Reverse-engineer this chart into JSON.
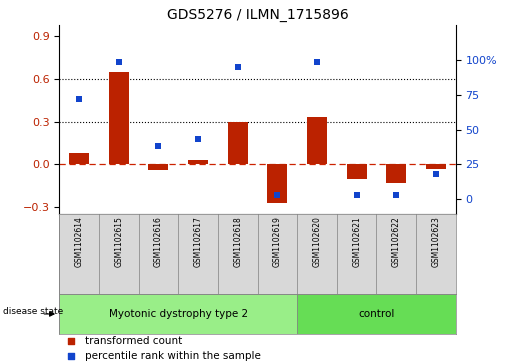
{
  "title": "GDS5276 / ILMN_1715896",
  "samples": [
    "GSM1102614",
    "GSM1102615",
    "GSM1102616",
    "GSM1102617",
    "GSM1102618",
    "GSM1102619",
    "GSM1102620",
    "GSM1102621",
    "GSM1102622",
    "GSM1102623"
  ],
  "bar_values": [
    0.08,
    0.65,
    -0.04,
    0.03,
    0.3,
    -0.27,
    0.33,
    -0.1,
    -0.13,
    -0.03
  ],
  "dot_pct": [
    72,
    99,
    38,
    43,
    95,
    3,
    99,
    3,
    3,
    18
  ],
  "ylim_left": [
    -0.35,
    0.975
  ],
  "ylim_right": [
    -10.9375,
    125
  ],
  "yticks_left": [
    -0.3,
    0.0,
    0.3,
    0.6,
    0.9
  ],
  "yticks_right": [
    0,
    25,
    50,
    75,
    100
  ],
  "hlines": [
    0.3,
    0.6
  ],
  "bar_color": "#bb2200",
  "dot_color": "#1144cc",
  "zero_line_color": "#cc2200",
  "disease_groups": [
    {
      "label": "Myotonic dystrophy type 2",
      "start": 0,
      "end": 6,
      "color": "#99ee88"
    },
    {
      "label": "control",
      "start": 6,
      "end": 10,
      "color": "#66dd55"
    }
  ],
  "disease_state_label": "disease state",
  "legend_bar_label": "transformed count",
  "legend_dot_label": "percentile rank within the sample",
  "bar_color_legend": "#bb2200",
  "dot_color_legend": "#1144cc",
  "bar_width": 0.5,
  "sample_box_color": "#d8d8d8",
  "fig_bg": "#ffffff"
}
